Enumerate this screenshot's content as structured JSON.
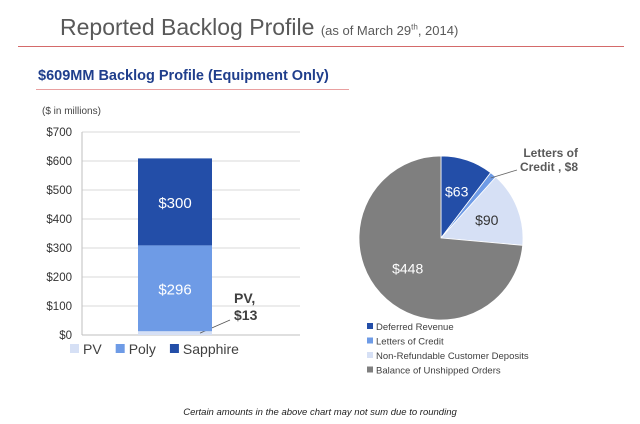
{
  "header": {
    "title": "Reported Backlog Profile",
    "as_of_prefix": "(as of March 29",
    "as_of_sup": "th",
    "as_of_suffix": ", 2014)",
    "subtitle": "$609MM Backlog Profile  (Equipment Only)"
  },
  "footnote": "Certain amounts in the above chart may not sum due to rounding",
  "chart_data": [
    {
      "type": "bar",
      "stacked": true,
      "unit_label": "($ in millions)",
      "ylim": [
        0,
        700
      ],
      "yticks": [
        0,
        100,
        200,
        300,
        400,
        500,
        600,
        700
      ],
      "ytick_labels": [
        "$0",
        "$100",
        "$200",
        "$300",
        "$400",
        "$500",
        "$600",
        "$700"
      ],
      "categories": [
        ""
      ],
      "series": [
        {
          "name": "PV",
          "values": [
            13
          ],
          "color": "#d6e0f5",
          "label": "PV,\n$13"
        },
        {
          "name": "Poly",
          "values": [
            296
          ],
          "color": "#6e9be6",
          "label": "$296"
        },
        {
          "name": "Sapphire",
          "values": [
            300
          ],
          "color": "#234ea8",
          "label": "$300"
        }
      ],
      "legend_position": "bottom"
    },
    {
      "type": "pie",
      "slices": [
        {
          "name": "Deferred Revenue",
          "value": 63,
          "label": "$63",
          "color": "#234ea8"
        },
        {
          "name": "Letters of Credit",
          "value": 8,
          "label": "Letters of\nCredit , $8",
          "color": "#6e9be6"
        },
        {
          "name": "Non-Refundable Customer Deposits",
          "value": 90,
          "label": "$90",
          "color": "#d6e0f5"
        },
        {
          "name": "Balance of Unshipped Orders",
          "value": 448,
          "label": "$448",
          "color": "#7f7f7f"
        }
      ],
      "legend_position": "bottom-left"
    }
  ]
}
